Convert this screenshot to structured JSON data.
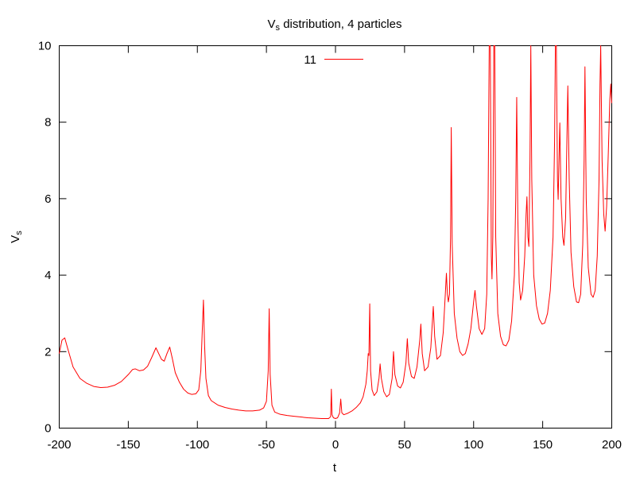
{
  "chart_data": {
    "type": "line",
    "title_main": "V",
    "title_sub": "s",
    "title_rest": " distribution, 4 particles",
    "xlabel": "t",
    "ylabel_main": "V",
    "ylabel_sub": "s",
    "xlim": [
      -200,
      200
    ],
    "ylim": [
      0,
      10
    ],
    "x_ticks": [
      -200,
      -150,
      -100,
      -50,
      0,
      50,
      100,
      150,
      200
    ],
    "x_tick_labels": [
      "-200",
      "-150",
      "-100",
      "-50",
      "0",
      "50",
      "100",
      "150",
      "200"
    ],
    "y_ticks": [
      0,
      2,
      4,
      6,
      8,
      10
    ],
    "y_tick_labels": [
      "0",
      "2",
      "4",
      "6",
      "8",
      "10"
    ],
    "grid": false,
    "legend_position": "top-center",
    "series": [
      {
        "name": "11",
        "color": "#ff0000",
        "points": [
          [
            -200,
            1.95
          ],
          [
            -198,
            2.3
          ],
          [
            -196,
            2.36
          ],
          [
            -194,
            2.1
          ],
          [
            -190,
            1.6
          ],
          [
            -185,
            1.3
          ],
          [
            -180,
            1.17
          ],
          [
            -175,
            1.09
          ],
          [
            -170,
            1.06
          ],
          [
            -165,
            1.07
          ],
          [
            -160,
            1.12
          ],
          [
            -155,
            1.22
          ],
          [
            -150,
            1.4
          ],
          [
            -147,
            1.53
          ],
          [
            -145,
            1.55
          ],
          [
            -142,
            1.5
          ],
          [
            -139,
            1.52
          ],
          [
            -136,
            1.62
          ],
          [
            -133,
            1.85
          ],
          [
            -130,
            2.1
          ],
          [
            -128,
            1.95
          ],
          [
            -126,
            1.8
          ],
          [
            -124,
            1.75
          ],
          [
            -122,
            1.95
          ],
          [
            -120,
            2.12
          ],
          [
            -118,
            1.8
          ],
          [
            -116,
            1.45
          ],
          [
            -113,
            1.2
          ],
          [
            -110,
            1.02
          ],
          [
            -107,
            0.92
          ],
          [
            -104,
            0.88
          ],
          [
            -101,
            0.9
          ],
          [
            -99,
            1.0
          ],
          [
            -97.5,
            1.5
          ],
          [
            -96.5,
            2.5
          ],
          [
            -95.6,
            3.35
          ],
          [
            -94.8,
            2.2
          ],
          [
            -93.8,
            1.3
          ],
          [
            -92,
            0.85
          ],
          [
            -90,
            0.72
          ],
          [
            -85,
            0.6
          ],
          [
            -80,
            0.54
          ],
          [
            -75,
            0.5
          ],
          [
            -70,
            0.47
          ],
          [
            -65,
            0.45
          ],
          [
            -60,
            0.45
          ],
          [
            -55,
            0.47
          ],
          [
            -52,
            0.53
          ],
          [
            -50,
            0.7
          ],
          [
            -48.7,
            1.5
          ],
          [
            -48,
            3.12
          ],
          [
            -47.3,
            1.4
          ],
          [
            -46,
            0.6
          ],
          [
            -44,
            0.42
          ],
          [
            -40,
            0.36
          ],
          [
            -35,
            0.33
          ],
          [
            -30,
            0.31
          ],
          [
            -25,
            0.29
          ],
          [
            -20,
            0.27
          ],
          [
            -15,
            0.26
          ],
          [
            -10,
            0.25
          ],
          [
            -5,
            0.25
          ],
          [
            -3.5,
            0.3
          ],
          [
            -3,
            1.02
          ],
          [
            -2.5,
            0.35
          ],
          [
            -1.5,
            0.27
          ],
          [
            0,
            0.25
          ],
          [
            1.5,
            0.27
          ],
          [
            3,
            0.4
          ],
          [
            3.8,
            0.76
          ],
          [
            4.6,
            0.4
          ],
          [
            6,
            0.35
          ],
          [
            9,
            0.39
          ],
          [
            12,
            0.45
          ],
          [
            15,
            0.54
          ],
          [
            18,
            0.66
          ],
          [
            20,
            0.82
          ],
          [
            22,
            1.15
          ],
          [
            23,
            1.5
          ],
          [
            23.7,
            1.95
          ],
          [
            24.2,
            1.9
          ],
          [
            24.8,
            3.25
          ],
          [
            25.4,
            1.5
          ],
          [
            26.5,
            1.0
          ],
          [
            28,
            0.85
          ],
          [
            30,
            0.95
          ],
          [
            31.5,
            1.3
          ],
          [
            32.3,
            1.68
          ],
          [
            33.2,
            1.3
          ],
          [
            35,
            0.95
          ],
          [
            37,
            0.82
          ],
          [
            39,
            0.88
          ],
          [
            41,
            1.3
          ],
          [
            42,
            2.0
          ],
          [
            43,
            1.4
          ],
          [
            45,
            1.1
          ],
          [
            47,
            1.05
          ],
          [
            49,
            1.2
          ],
          [
            51,
            1.7
          ],
          [
            52,
            2.34
          ],
          [
            53,
            1.7
          ],
          [
            55,
            1.35
          ],
          [
            57,
            1.3
          ],
          [
            59,
            1.6
          ],
          [
            61,
            2.3
          ],
          [
            61.8,
            2.72
          ],
          [
            62.8,
            1.95
          ],
          [
            64.5,
            1.5
          ],
          [
            67,
            1.6
          ],
          [
            69,
            2.1
          ],
          [
            70,
            2.7
          ],
          [
            70.8,
            3.18
          ],
          [
            71.8,
            2.4
          ],
          [
            73.5,
            1.8
          ],
          [
            76,
            1.9
          ],
          [
            78,
            2.5
          ],
          [
            79.5,
            3.5
          ],
          [
            80.3,
            4.05
          ],
          [
            81,
            3.5
          ],
          [
            81.7,
            3.3
          ],
          [
            82.5,
            3.5
          ],
          [
            83.3,
            5.0
          ],
          [
            83.8,
            7.86
          ],
          [
            84.5,
            4.8
          ],
          [
            86,
            3.0
          ],
          [
            88,
            2.35
          ],
          [
            90,
            2.0
          ],
          [
            92,
            1.9
          ],
          [
            94,
            1.95
          ],
          [
            96,
            2.2
          ],
          [
            98,
            2.6
          ],
          [
            100,
            3.3
          ],
          [
            101,
            3.6
          ],
          [
            102,
            3.2
          ],
          [
            104,
            2.6
          ],
          [
            106,
            2.45
          ],
          [
            108,
            2.6
          ],
          [
            109.5,
            3.5
          ],
          [
            110.5,
            6.0
          ],
          [
            111.3,
            10.0
          ],
          [
            112.1,
            10.0
          ],
          [
            112.8,
            4.5
          ],
          [
            113.3,
            3.9
          ],
          [
            113.9,
            5.0
          ],
          [
            114.6,
            10.0
          ],
          [
            115.3,
            10.0
          ],
          [
            116,
            5.0
          ],
          [
            117.5,
            3.0
          ],
          [
            119.5,
            2.4
          ],
          [
            121.5,
            2.18
          ],
          [
            123.5,
            2.15
          ],
          [
            125.5,
            2.3
          ],
          [
            127.5,
            2.8
          ],
          [
            129.5,
            4.0
          ],
          [
            130.5,
            6.0
          ],
          [
            131.2,
            8.65
          ],
          [
            132,
            5.5
          ],
          [
            133,
            3.8
          ],
          [
            134,
            3.35
          ],
          [
            135.5,
            3.6
          ],
          [
            137,
            4.5
          ],
          [
            138,
            5.6
          ],
          [
            138.6,
            6.05
          ],
          [
            139.3,
            5.0
          ],
          [
            140,
            4.75
          ],
          [
            140.8,
            7.0
          ],
          [
            141.4,
            10.0
          ],
          [
            142.1,
            6.5
          ],
          [
            143.5,
            4.0
          ],
          [
            145.5,
            3.2
          ],
          [
            147.5,
            2.85
          ],
          [
            149.5,
            2.72
          ],
          [
            151.5,
            2.75
          ],
          [
            153.5,
            3.0
          ],
          [
            155.5,
            3.6
          ],
          [
            157.5,
            5.0
          ],
          [
            158.6,
            7.5
          ],
          [
            159.2,
            10.0
          ],
          [
            159.9,
            10.0
          ],
          [
            160.7,
            6.5
          ],
          [
            161.2,
            5.98
          ],
          [
            161.8,
            7.0
          ],
          [
            162.4,
            7.98
          ],
          [
            163.3,
            6.0
          ],
          [
            164.5,
            5.0
          ],
          [
            165.4,
            4.78
          ],
          [
            166.6,
            5.5
          ],
          [
            167.5,
            7.5
          ],
          [
            168.2,
            8.95
          ],
          [
            169.2,
            6.5
          ],
          [
            170.5,
            4.6
          ],
          [
            172.5,
            3.7
          ],
          [
            174.5,
            3.3
          ],
          [
            176,
            3.28
          ],
          [
            177.5,
            3.5
          ],
          [
            179,
            4.8
          ],
          [
            180,
            7.0
          ],
          [
            180.6,
            9.45
          ],
          [
            181.5,
            6.0
          ],
          [
            183,
            4.2
          ],
          [
            185,
            3.5
          ],
          [
            186.5,
            3.42
          ],
          [
            188,
            3.6
          ],
          [
            189.5,
            4.5
          ],
          [
            190.8,
            6.5
          ],
          [
            191.5,
            9.0
          ],
          [
            192,
            10.0
          ],
          [
            193,
            7.0
          ],
          [
            194.2,
            5.6
          ],
          [
            195.2,
            5.15
          ],
          [
            196.3,
            5.8
          ],
          [
            197.5,
            7.2
          ],
          [
            198.6,
            8.6
          ],
          [
            199.3,
            9.0
          ],
          [
            200,
            8.5
          ]
        ]
      }
    ]
  }
}
